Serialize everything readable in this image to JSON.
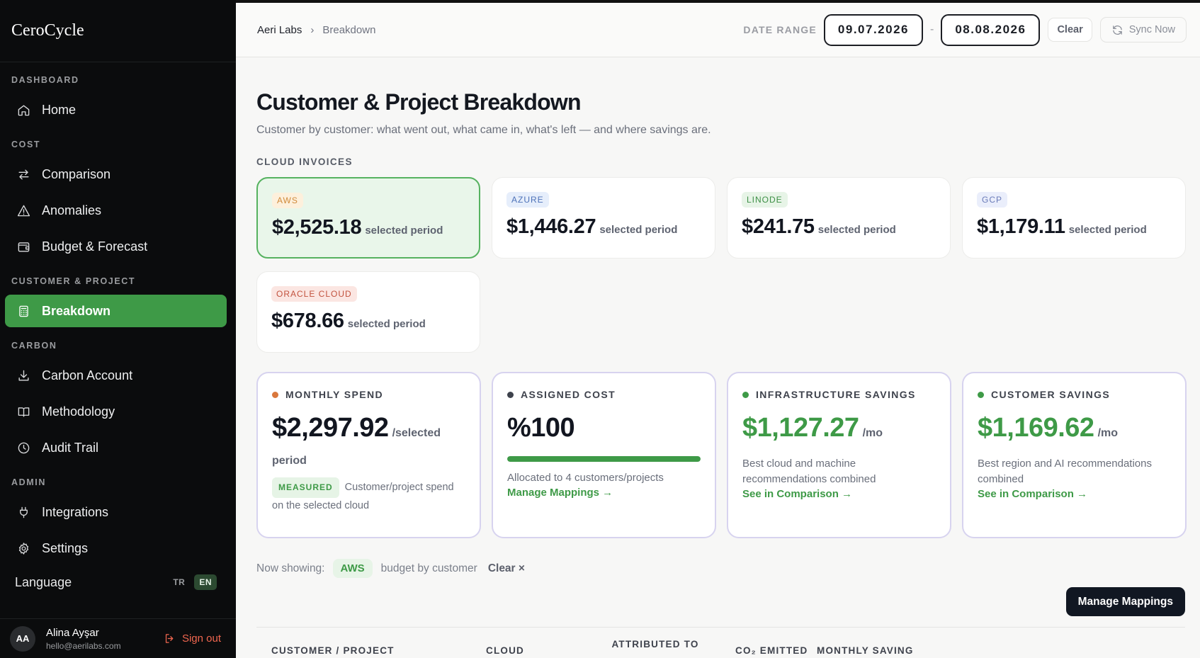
{
  "sidebar": {
    "brand": "CeroCycle",
    "sections": [
      {
        "title": "DASHBOARD",
        "items": [
          {
            "label": "Home",
            "icon": "home-icon"
          }
        ]
      },
      {
        "title": "COST",
        "items": [
          {
            "label": "Comparison",
            "icon": "arrows-swap-icon"
          },
          {
            "label": "Anomalies",
            "icon": "warning-triangle-icon"
          },
          {
            "label": "Budget & Forecast",
            "icon": "wallet-icon"
          }
        ]
      },
      {
        "title": "CUSTOMER & PROJECT",
        "items": [
          {
            "label": "Breakdown",
            "icon": "calculator-icon",
            "active": true
          }
        ]
      },
      {
        "title": "CARBON",
        "items": [
          {
            "label": "Carbon Account",
            "icon": "download-tray-icon"
          },
          {
            "label": "Methodology",
            "icon": "book-icon"
          },
          {
            "label": "Audit Trail",
            "icon": "clock-icon"
          }
        ]
      },
      {
        "title": "ADMIN",
        "items": [
          {
            "label": "Integrations",
            "icon": "plug-icon"
          },
          {
            "label": "Settings",
            "icon": "gear-icon"
          }
        ]
      }
    ],
    "language": {
      "label": "Language",
      "options": [
        "TR",
        "EN"
      ],
      "selected": "EN"
    },
    "user": {
      "initials": "AA",
      "name": "Alina Ayşar",
      "email": "hello@aerilabs.com",
      "signout": "Sign out"
    }
  },
  "topbar": {
    "breadcrumb": [
      "Aeri Labs",
      "Breakdown"
    ],
    "date_range_label": "DATE RANGE",
    "date_from": "09.07.2026",
    "date_sep": "-",
    "date_to": "08.08.2026",
    "clear": "Clear",
    "sync": "Sync Now"
  },
  "page": {
    "title": "Customer & Project Breakdown",
    "subtitle": "Customer by customer: what went out, what came in, what's left — and where savings are.",
    "invoices_label": "CLOUD INVOICES"
  },
  "invoices": [
    {
      "provider": "AWS",
      "amount": "$2,525.18",
      "period": "selected period",
      "selected": true
    },
    {
      "provider": "AZURE",
      "amount": "$1,446.27",
      "period": "selected period"
    },
    {
      "provider": "LINODE",
      "amount": "$241.75",
      "period": "selected period"
    },
    {
      "provider": "GCP",
      "amount": "$1,179.11",
      "period": "selected period"
    },
    {
      "provider": "ORACLE CLOUD",
      "amount": "$678.66",
      "period": "selected period"
    }
  ],
  "kpis": {
    "monthly_spend": {
      "title": "MONTHLY SPEND",
      "value": "$2,297.92",
      "unit": "/selected",
      "unit_cont": "period",
      "tag": "MEASURED",
      "desc": "Customer/project spend on the selected cloud",
      "dot_color": "#d9773c"
    },
    "assigned_cost": {
      "title": "ASSIGNED COST",
      "value": "%100",
      "progress": 1.0,
      "desc": "Allocated to 4 customers/projects",
      "link": "Manage Mappings →",
      "dot_color": "#3e424c"
    },
    "infra_savings": {
      "title": "INFRASTRUCTURE SAVINGS",
      "value": "$1,127.27",
      "unit": "/mo",
      "desc": "Best cloud and machine recommendations combined",
      "link": "See in Comparison →",
      "dot_color": "#3e9a47"
    },
    "customer_savings": {
      "title": "CUSTOMER SAVINGS",
      "value": "$1,169.62",
      "unit": "/mo",
      "desc": "Best region and AI recommendations combined",
      "link": "See in Comparison →",
      "dot_color": "#3e9a47"
    }
  },
  "filter": {
    "prefix": "Now showing:",
    "chip": "AWS",
    "suffix": "budget by customer",
    "clear": "Clear ×"
  },
  "manage_button": "Manage Mappings",
  "table": {
    "headers": [
      "CUSTOMER / PROJECT",
      "CLOUD",
      "ATTRIBUTED TO CUSTOMER",
      "CO₂ EMITTED",
      "MONTHLY SAVING"
    ]
  },
  "colors": {
    "accent": "#3e9a47",
    "sidebar_bg": "#0b0c0d",
    "kpi_border": "#d7d3ef"
  }
}
